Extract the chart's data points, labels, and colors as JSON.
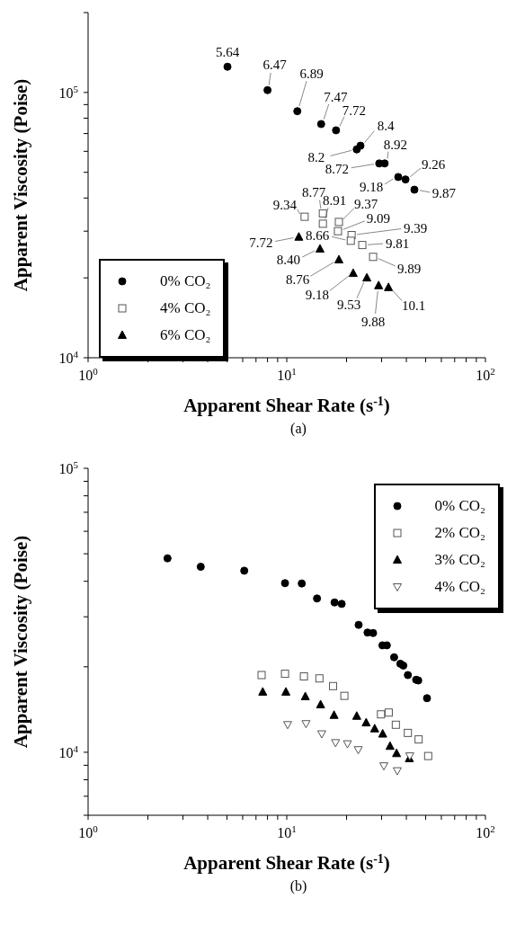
{
  "chart_data": [
    {
      "type": "scatter",
      "xlabel": "Apparent Shear Rate (s$^{-1}$)",
      "ylabel": "Apparent Viscosity (Poise)",
      "log": "xy",
      "legend": "bottom left",
      "annotations": [
        "(a)",
        {
          "text": "5.64",
          "x": 5.03,
          "y": 125000
        },
        {
          "text": "6.47",
          "x": 8.0,
          "y": 102000
        },
        {
          "text": "6.89",
          "x": 11.3,
          "y": 85000
        },
        {
          "text": "7.47",
          "x": 14.9,
          "y": 76000
        },
        {
          "text": "7.72",
          "x": 17.7,
          "y": 72000
        },
        {
          "text": "8.2",
          "x": 22.5,
          "y": 61000
        },
        {
          "text": "8.4",
          "x": 23.5,
          "y": 63000
        },
        {
          "text": "8.72",
          "x": 29.2,
          "y": 54000
        },
        {
          "text": "8.92",
          "x": 31.1,
          "y": 54000
        },
        {
          "text": "9.18",
          "x": 36.4,
          "y": 48000
        },
        {
          "text": "9.26",
          "x": 39.6,
          "y": 47000
        },
        {
          "text": "9.87",
          "x": 43.9,
          "y": 43000
        },
        {
          "text": "9.34",
          "x": 12.3,
          "y": 34000
        },
        {
          "text": "8.77",
          "x": 15.2,
          "y": 35000
        },
        {
          "text": "8.91",
          "x": 15.2,
          "y": 32000
        },
        {
          "text": "9.37",
          "x": 18.3,
          "y": 32500
        },
        {
          "text": "9.09",
          "x": 18.1,
          "y": 30000
        },
        {
          "text": "9.39",
          "x": 21.2,
          "y": 29000
        },
        {
          "text": "8.66",
          "x": 21.0,
          "y": 27600
        },
        {
          "text": "9.81",
          "x": 24.0,
          "y": 26600
        },
        {
          "text": "9.89",
          "x": 27.2,
          "y": 24000
        },
        {
          "text": "7.72",
          "x": 11.5,
          "y": 28500
        },
        {
          "text": "8.40",
          "x": 14.7,
          "y": 25700
        },
        {
          "text": "8.76",
          "x": 18.3,
          "y": 23400
        },
        {
          "text": "9.18",
          "x": 21.6,
          "y": 20800
        },
        {
          "text": "9.53",
          "x": 25.3,
          "y": 20000
        },
        {
          "text": "9.88",
          "x": 29.0,
          "y": 18700
        },
        {
          "text": "10.1",
          "x": 32.5,
          "y": 18400
        }
      ],
      "xlim": [
        1,
        100
      ],
      "ylim": [
        10000,
        200000
      ],
      "xticks": [
        {
          "value": 1,
          "label": "10$^{0}$"
        },
        {
          "value": 2,
          "label": null
        },
        {
          "value": 3,
          "label": null
        },
        {
          "value": 4,
          "label": null
        },
        {
          "value": 5,
          "label": null
        },
        {
          "value": 6,
          "label": null
        },
        {
          "value": 7,
          "label": null
        },
        {
          "value": 8,
          "label": null
        },
        {
          "value": 9,
          "label": null
        },
        {
          "value": 10,
          "label": "10$^{1}$"
        },
        {
          "value": 20,
          "label": null
        },
        {
          "value": 30,
          "label": null
        },
        {
          "value": 40,
          "label": null
        },
        {
          "value": 50,
          "label": null
        },
        {
          "value": 60,
          "label": null
        },
        {
          "value": 70,
          "label": null
        },
        {
          "value": 80,
          "label": null
        },
        {
          "value": 90,
          "label": null
        },
        {
          "value": 100,
          "label": "10$^{2}$"
        }
      ],
      "yticks": [
        {
          "value": 10000,
          "label": "10$^{4}$"
        },
        {
          "value": 20000,
          "label": null
        },
        {
          "value": 30000,
          "label": null
        },
        {
          "value": 40000,
          "label": null
        },
        {
          "value": 50000,
          "label": null
        },
        {
          "value": 60000,
          "label": null
        },
        {
          "value": 70000,
          "label": null
        },
        {
          "value": 80000,
          "label": null
        },
        {
          "value": 90000,
          "label": null
        },
        {
          "value": 100000,
          "label": "10$^{5}$"
        },
        {
          "value": 200000,
          "label": null
        }
      ],
      "series": [
        {
          "name": "0% CO₂",
          "color": "#000000",
          "marker": "circle",
          "x": [
            5.03,
            8.0,
            11.3,
            14.9,
            17.7,
            22.5,
            23.5,
            29.2,
            31.1,
            36.4,
            39.6,
            43.9
          ],
          "values": [
            125000,
            102000,
            85000,
            76000,
            72000,
            61000,
            63000,
            54000,
            54000,
            48000,
            47000,
            43000
          ]
        },
        {
          "name": "4% CO₂",
          "color": "#555555",
          "marker": "square",
          "x": [
            12.3,
            15.2,
            15.2,
            18.3,
            18.1,
            21.2,
            21.0,
            24.0,
            27.2
          ],
          "values": [
            34000,
            35000,
            32000,
            32500,
            30000,
            29000,
            27600,
            26600,
            24000
          ]
        },
        {
          "name": "6% CO₂",
          "color": "#000000",
          "marker": "triangle",
          "x": [
            11.5,
            14.7,
            18.3,
            21.6,
            25.3,
            29.0,
            32.5
          ],
          "values": [
            28500,
            25700,
            23400,
            20800,
            20000,
            18700,
            18400
          ]
        }
      ]
    },
    {
      "type": "scatter",
      "xlabel": "Apparent Shear Rate (s$^{-1}$)",
      "ylabel": "Apparent Viscosity (Poise)",
      "annotations": [
        "(b)"
      ],
      "log": "xy",
      "legend": "top right",
      "xlim": [
        1,
        100
      ],
      "ylim": [
        6000,
        100000
      ],
      "xticks": [
        {
          "value": 1,
          "label": "10$^{0}$"
        },
        {
          "value": 2,
          "label": null
        },
        {
          "value": 3,
          "label": null
        },
        {
          "value": 4,
          "label": null
        },
        {
          "value": 5,
          "label": null
        },
        {
          "value": 6,
          "label": null
        },
        {
          "value": 7,
          "label": null
        },
        {
          "value": 8,
          "label": null
        },
        {
          "value": 9,
          "label": null
        },
        {
          "value": 10,
          "label": "10$^{1}$"
        },
        {
          "value": 20,
          "label": null
        },
        {
          "value": 30,
          "label": null
        },
        {
          "value": 40,
          "label": null
        },
        {
          "value": 50,
          "label": null
        },
        {
          "value": 60,
          "label": null
        },
        {
          "value": 70,
          "label": null
        },
        {
          "value": 80,
          "label": null
        },
        {
          "value": 90,
          "label": null
        },
        {
          "value": 100,
          "label": "10$^{2}$"
        }
      ],
      "yticks": [
        {
          "value": 6000,
          "label": null
        },
        {
          "value": 7000,
          "label": null
        },
        {
          "value": 8000,
          "label": null
        },
        {
          "value": 9000,
          "label": null
        },
        {
          "value": 10000,
          "label": "10$^{4}$"
        },
        {
          "value": 20000,
          "label": null
        },
        {
          "value": 30000,
          "label": null
        },
        {
          "value": 40000,
          "label": null
        },
        {
          "value": 50000,
          "label": null
        },
        {
          "value": 60000,
          "label": null
        },
        {
          "value": 70000,
          "label": null
        },
        {
          "value": 80000,
          "label": null
        },
        {
          "value": 90000,
          "label": null
        },
        {
          "value": 100000,
          "label": "10$^{5}$"
        }
      ],
      "series": [
        {
          "name": "0% CO₂",
          "color": "#000000",
          "marker": "circle",
          "x": [
            2.51,
            3.69,
            6.11,
            9.8,
            11.9,
            14.2,
            17.4,
            18.9,
            23.0,
            25.5,
            27.2,
            30.3,
            31.9,
            34.7,
            37.3,
            38.6,
            40.7,
            44.8,
            45.9,
            50.8
          ],
          "values": [
            48200,
            45000,
            43600,
            39400,
            39300,
            34800,
            33700,
            33300,
            28100,
            26400,
            26300,
            23800,
            23800,
            21600,
            20500,
            20200,
            18700,
            18000,
            17900,
            15500
          ]
        },
        {
          "name": "2% CO₂",
          "color": "#555555",
          "marker": "square",
          "x": [
            7.47,
            9.8,
            12.2,
            14.6,
            17.1,
            19.5,
            29.8,
            32.6,
            35.4,
            40.7,
            46.1,
            51.5
          ],
          "values": [
            18700,
            18900,
            18500,
            18200,
            17100,
            15800,
            13600,
            13800,
            12500,
            11700,
            11100,
            9700
          ]
        },
        {
          "name": "3% CO₂",
          "color": "#000000",
          "marker": "triangle",
          "x": [
            7.57,
            9.9,
            12.4,
            14.8,
            17.3,
            22.5,
            25.1,
            27.7,
            30.4,
            33.1,
            35.7,
            41.4
          ],
          "values": [
            16300,
            16300,
            15700,
            14700,
            13500,
            13400,
            12700,
            12100,
            11600,
            10500,
            9900,
            9500
          ]
        },
        {
          "name": "4% CO₂",
          "color": "#555555",
          "marker": "triangle-down",
          "x": [
            10.1,
            12.5,
            15.0,
            17.6,
            20.2,
            22.9,
            30.8,
            36.0,
            41.6
          ],
          "values": [
            12500,
            12600,
            11600,
            10800,
            10700,
            10200,
            8950,
            8600,
            9700
          ]
        }
      ]
    }
  ]
}
